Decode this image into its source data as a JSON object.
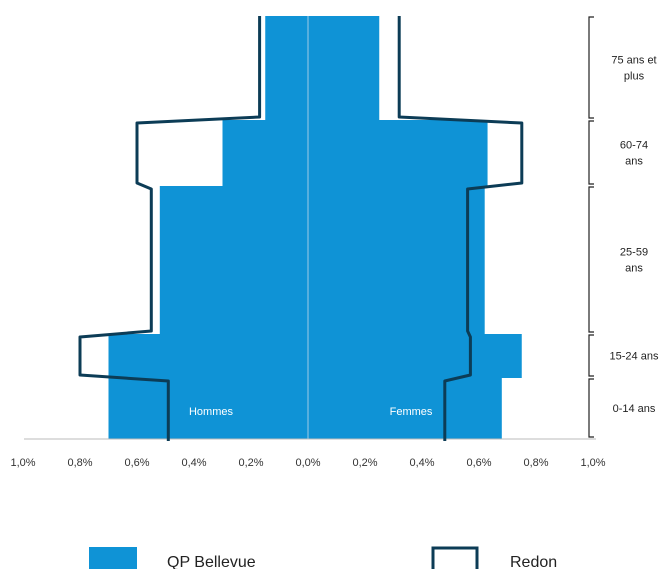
{
  "chart_data": {
    "type": "population-pyramid",
    "unit": "%",
    "age_groups": [
      "0-14 ans",
      "15-24 ans",
      "25-59 ans",
      "60-74 ans",
      "75 ans et plus"
    ],
    "bracket_labels": [
      [
        "0-14 ans"
      ],
      [
        "15-24 ans"
      ],
      [
        "25-59",
        "ans"
      ],
      [
        "60-74",
        "ans"
      ],
      [
        "75 ans et",
        "plus"
      ]
    ],
    "xticks": [
      "1,0%",
      "0,8%",
      "0,6%",
      "0,4%",
      "0,2%",
      "0,0%",
      "0,2%",
      "0,4%",
      "0,6%",
      "0,8%",
      "1,0%"
    ],
    "xlim": [
      -1.0,
      1.0
    ],
    "side_labels": {
      "left": "Hommes",
      "right": "Femmes"
    },
    "series": [
      {
        "name": "QP Bellevue",
        "style": "filled",
        "color": "#0f93d6",
        "hommes": {
          "0-14 ans": 0.7,
          "15-24 ans": 0.7,
          "25-59 ans": 0.52,
          "60-74 ans": 0.3,
          "75 ans et plus": 0.15
        },
        "femmes": {
          "0-14 ans": 0.68,
          "15-24 ans": 0.75,
          "25-59 ans": 0.62,
          "60-74 ans": 0.63,
          "75 ans et plus": 0.25
        }
      },
      {
        "name": "Redon",
        "style": "outline",
        "color": "#0c3c56",
        "hommes": {
          "0-14 ans": 0.49,
          "15-24 ans": 0.8,
          "25-59 ans": 0.55,
          "60-74 ans": 0.6,
          "75 ans et plus": 0.17
        },
        "femmes": {
          "0-14 ans": 0.48,
          "15-24 ans": 0.57,
          "25-59 ans": 0.56,
          "60-74 ans": 0.75,
          "75 ans et plus": 0.32
        }
      }
    ],
    "legend": {
      "position": "bottom",
      "entries": [
        "QP Bellevue",
        "Redon"
      ]
    }
  }
}
